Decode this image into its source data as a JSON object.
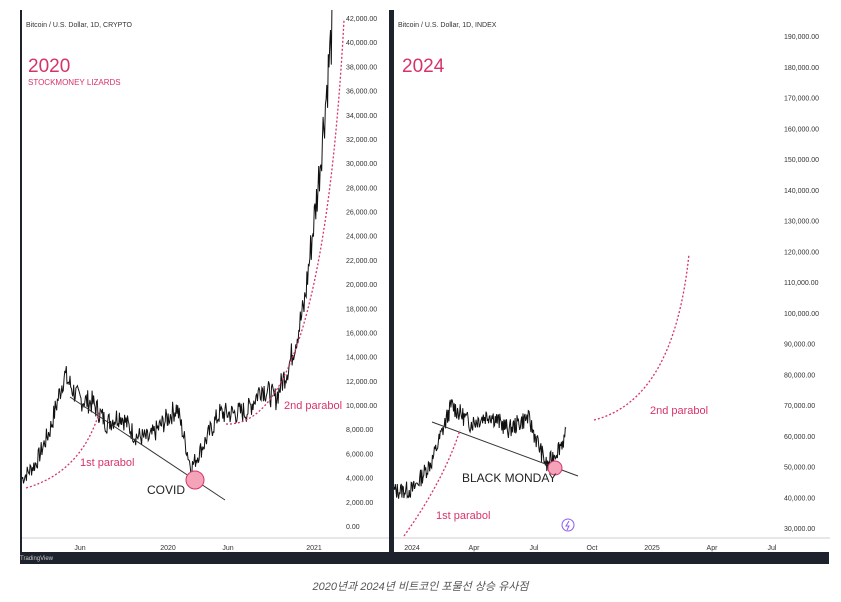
{
  "caption": "2020년과 2024년 비트코인 포물선 상승 유사점",
  "watermark": "TradingView",
  "colors": {
    "accent": "#d6336c",
    "price": "#111111",
    "panel_bg": "#ffffff",
    "frame": "#1e222d",
    "icon": "#8b5cf6"
  },
  "left": {
    "header": "Bitcoin / U.S. Dollar, 1D, CRYPTO",
    "big_label": "2020",
    "sub_label": "STOCKMONEY LIZARDS",
    "y_ticks": [
      "42,000.00",
      "40,000.00",
      "38,000.00",
      "36,000.00",
      "34,000.00",
      "32,000.00",
      "30,000.00",
      "28,000.00",
      "26,000.00",
      "24,000.00",
      "22,000.00",
      "20,000.00",
      "18,000.00",
      "16,000.00",
      "14,000.00",
      "12,000.00",
      "10,000.00",
      "8,000.00",
      "6,000.00",
      "4,000.00",
      "2,000.00",
      "0.00"
    ],
    "x_ticks": [
      "Jun",
      "2020",
      "Jun",
      "2021"
    ],
    "annotations": {
      "first": "1st parabol",
      "second": "2nd parabol",
      "event": "COVID"
    }
  },
  "right": {
    "header": "Bitcoin / U.S. Dollar, 1D, INDEX",
    "big_label": "2024",
    "y_ticks": [
      "190,000.00",
      "180,000.00",
      "170,000.00",
      "160,000.00",
      "150,000.00",
      "140,000.00",
      "130,000.00",
      "120,000.00",
      "110,000.00",
      "100,000.00",
      "90,000.00",
      "80,000.00",
      "70,000.00",
      "60,000.00",
      "50,000.00",
      "40,000.00",
      "30,000.00"
    ],
    "x_ticks": [
      "2024",
      "Apr",
      "Jul",
      "Oct",
      "2025",
      "Apr",
      "Jul"
    ],
    "annotations": {
      "first": "1st parabol",
      "second": "2nd parabol",
      "event": "BLACK MONDAY"
    }
  },
  "chart_data": [
    {
      "type": "line",
      "title": "Bitcoin / U.S. Dollar, 1D, CRYPTO",
      "x": [
        "2019-03",
        "2019-04",
        "2019-05",
        "2019-06",
        "2019-07",
        "2019-08",
        "2019-09",
        "2019-10",
        "2019-11",
        "2019-12",
        "2020-01",
        "2020-02",
        "2020-03",
        "2020-04",
        "2020-05",
        "2020-06",
        "2020-07",
        "2020-08",
        "2020-09",
        "2020-10",
        "2020-11",
        "2020-12",
        "2021-01"
      ],
      "series": [
        {
          "name": "BTCUSD",
          "values": [
            3900,
            5200,
            8000,
            12500,
            10500,
            10200,
            8500,
            9200,
            7500,
            7200,
            8500,
            9800,
            4800,
            7000,
            9300,
            9300,
            9500,
            11500,
            10500,
            13500,
            18000,
            28000,
            41000
          ]
        }
      ],
      "ylim": [
        0,
        42000
      ],
      "annotations": [
        "1st parabol",
        "2nd parabol",
        "COVID"
      ]
    },
    {
      "type": "line",
      "title": "Bitcoin / U.S. Dollar, 1D, INDEX",
      "x": [
        "2023-12",
        "2024-01",
        "2024-02",
        "2024-03",
        "2024-04",
        "2024-05",
        "2024-06",
        "2024-07",
        "2024-08",
        "2024-09"
      ],
      "series": [
        {
          "name": "BTCUSD",
          "values": [
            42000,
            42500,
            52000,
            70000,
            64000,
            67000,
            62000,
            66000,
            50000,
            60000
          ]
        }
      ],
      "ylim": [
        30000,
        190000
      ],
      "annotations": [
        "1st parabol",
        "2nd parabol",
        "BLACK MONDAY"
      ]
    }
  ]
}
